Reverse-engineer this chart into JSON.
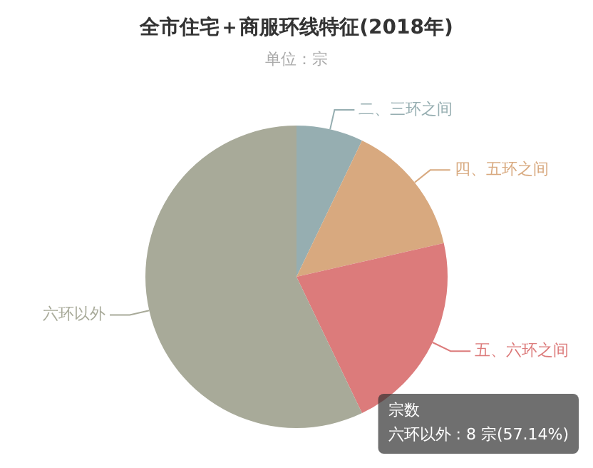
{
  "chart_data": {
    "type": "pie",
    "title": "全市住宅＋商服环线特征(2018年)",
    "subtitle": "单位：宗",
    "categories": [
      "二、三环之间",
      "四、五环之间",
      "五、六环之间",
      "六环以外"
    ],
    "values": [
      7.14,
      14.29,
      21.43,
      57.14
    ],
    "colors": [
      "#96aeb1",
      "#d8a97f",
      "#dc7b7b",
      "#a8aa99"
    ],
    "legend": false,
    "annotations": [
      "宗数",
      "六环以外 : 8 宗(57.14%)"
    ]
  }
}
